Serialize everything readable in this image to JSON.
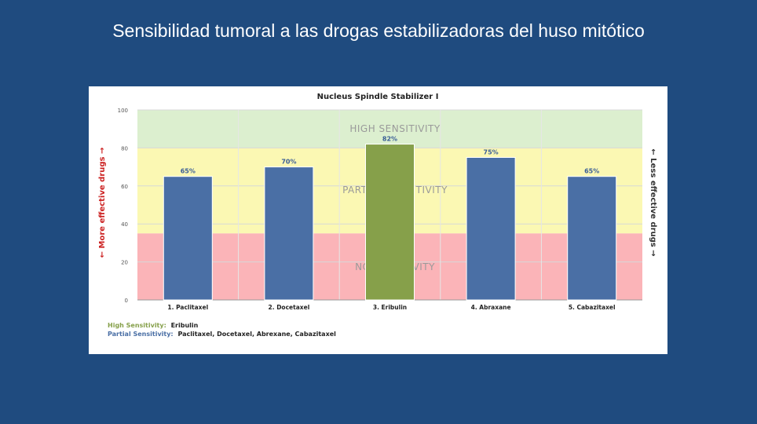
{
  "slide": {
    "title": "Sensibilidad tumoral a las drogas estabilizadoras del huso mitótico"
  },
  "chart_data": {
    "type": "bar",
    "title": "Nucleus Spindle Stabilizer I",
    "categories": [
      "1. Paclitaxel",
      "2. Docetaxel",
      "3. Eribulin",
      "4. Abraxane",
      "5. Cabazitaxel"
    ],
    "values": [
      65,
      70,
      82,
      75,
      65
    ],
    "value_labels": [
      "65%",
      "70%",
      "82%",
      "75%",
      "65%"
    ],
    "bar_colors": [
      "#4a6fa5",
      "#4a6fa5",
      "#86a04a",
      "#4a6fa5",
      "#4a6fa5"
    ],
    "ylim": [
      0,
      100
    ],
    "yticks": [
      0,
      20,
      40,
      60,
      80,
      100
    ],
    "ytick_labels": [
      "0",
      "20",
      "40",
      "60",
      "80",
      "100"
    ],
    "ylabel_left": "← More effective drugs →",
    "ylabel_right": "← Less effective drugs →",
    "bands": [
      {
        "label": "HIGH SENSITIVITY",
        "from": 80,
        "to": 100,
        "color": "#dcefcf"
      },
      {
        "label": "PARTIAL SENSITIVITY",
        "from": 35,
        "to": 80,
        "color": "#fbf8b3"
      },
      {
        "label": "NO SENSITIVITY",
        "from": 0,
        "to": 35,
        "color": "#fbb4b8"
      }
    ],
    "legend_lines": [
      {
        "key": "High Sensitivity:",
        "value": "Eribulin",
        "key_color": "#86a04a"
      },
      {
        "key": "Partial Sensitivity:",
        "value": "Paclitaxel, Docetaxel, Abrexane, Cabazitaxel",
        "key_color": "#4a6fa5"
      }
    ],
    "grid": true
  }
}
